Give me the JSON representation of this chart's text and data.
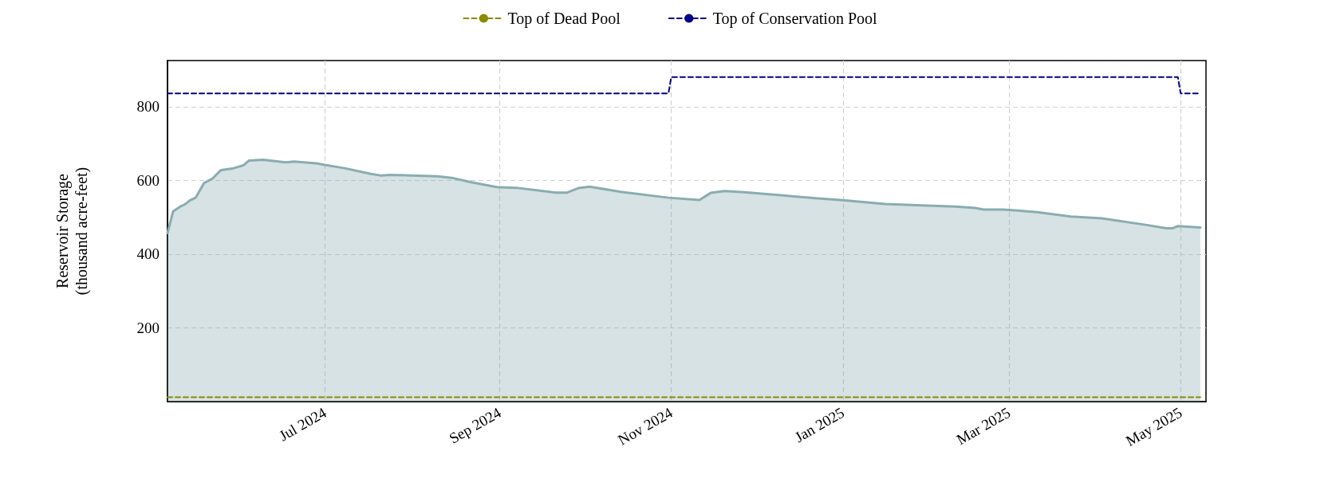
{
  "chart_data": {
    "type": "area",
    "ylabel": "Reservoir Storage\n(thousand acre-feet)",
    "xlim": [
      "2024-05-06",
      "2025-05-10"
    ],
    "xticks": [
      {
        "value": "2024-07-01",
        "label": "Jul 2024"
      },
      {
        "value": "2024-09-01",
        "label": "Sep 2024"
      },
      {
        "value": "2024-11-01",
        "label": "Nov 2024"
      },
      {
        "value": "2025-01-01",
        "label": "Jan 2025"
      },
      {
        "value": "2025-03-01",
        "label": "Mar 2025"
      },
      {
        "value": "2025-05-01",
        "label": "May 2025"
      }
    ],
    "ylim": [
      0,
      925
    ],
    "yticks": [
      200,
      400,
      600,
      800
    ],
    "grid": true,
    "legend": "top",
    "series": [
      {
        "color": "#8aacb0",
        "line_style": "solid",
        "x": [
          "2024-05-06",
          "2024-05-08",
          "2024-05-11",
          "2024-05-12",
          "2024-05-14",
          "2024-05-16",
          "2024-05-19",
          "2024-05-22",
          "2024-05-25",
          "2024-05-29",
          "2024-06-02",
          "2024-06-04",
          "2024-06-09",
          "2024-06-17",
          "2024-06-20",
          "2024-06-28",
          "2024-07-01",
          "2024-07-08",
          "2024-07-17",
          "2024-07-21",
          "2024-07-24",
          "2024-08-10",
          "2024-08-15",
          "2024-08-22",
          "2024-08-31",
          "2024-09-03",
          "2024-09-07",
          "2024-09-21",
          "2024-09-25",
          "2024-09-29",
          "2024-10-03",
          "2024-10-14",
          "2024-10-31",
          "2024-11-11",
          "2024-11-15",
          "2024-11-20",
          "2024-11-27",
          "2024-12-10",
          "2024-12-17",
          "2025-01-01",
          "2025-01-16",
          "2025-01-29",
          "2025-02-10",
          "2025-02-17",
          "2025-02-20",
          "2025-02-27",
          "2025-03-11",
          "2025-03-23",
          "2025-04-03",
          "2025-04-19",
          "2025-04-26",
          "2025-04-28",
          "2025-04-30",
          "2025-05-08"
        ],
        "values": [
          457,
          516,
          531,
          534,
          546,
          553,
          593,
          605,
          628,
          632,
          641,
          654,
          656,
          649,
          651,
          646,
          642,
          633,
          618,
          613,
          615,
          611,
          607,
          595,
          582,
          581,
          580,
          567,
          567,
          579,
          583,
          569,
          553,
          547,
          566,
          571,
          568,
          560,
          555,
          546,
          536,
          532,
          529,
          525,
          521,
          521,
          514,
          502,
          497,
          479,
          470,
          470,
          476,
          472
        ]
      },
      {
        "type": "line",
        "name": "Top of Dead Pool",
        "color": "#8b8b00",
        "line_style": "dashed",
        "x": [
          "2024-05-06",
          "2025-05-08"
        ],
        "values": [
          12,
          12
        ]
      },
      {
        "type": "line",
        "name": "Top of Conservation Pool",
        "color": "#00008b",
        "line_style": "dashed",
        "x": [
          "2024-05-06",
          "2024-10-31",
          "2024-11-01",
          "2025-04-30",
          "2025-05-01",
          "2025-05-08"
        ],
        "values": [
          836,
          836,
          880,
          880,
          836,
          836
        ]
      }
    ]
  }
}
